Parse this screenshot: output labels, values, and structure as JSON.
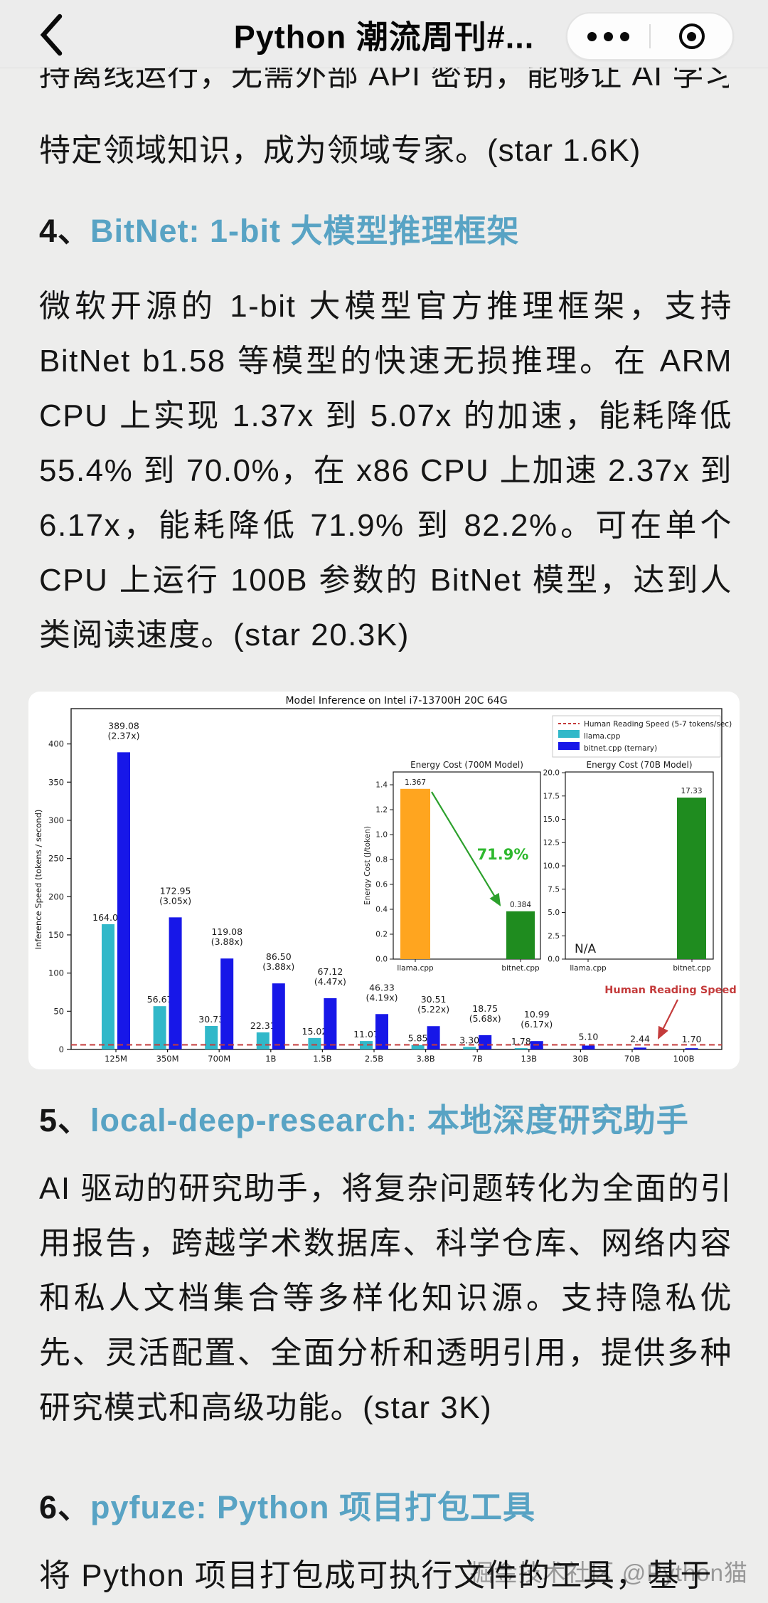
{
  "nav": {
    "title": "Python 潮流周刊#...",
    "back_icon": "chevron-left",
    "menu_icon": "three-dots",
    "capsule_icon": "target-circle"
  },
  "article": {
    "clipped_line": "持离线运行，无需外部 API 密钥，能够让 AI 学习",
    "intro_line": "特定领域知识，成为领域专家。(star 1.6K)",
    "sections": [
      {
        "number": "4、",
        "link_text": "BitNet: 1-bit 大模型推理框架",
        "paragraph": "微软开源的 1-bit 大模型官方推理框架，支持 BitNet b1.58 等模型的快速无损推理。在 ARM CPU 上实现 1.37x 到 5.07x 的加速，能耗降低 55.4% 到 70.0%，在 x86 CPU 上加速 2.37x 到 6.17x，能耗降低 71.9% 到 82.2%。可在单个 CPU 上运行 100B 参数的 BitNet 模型，达到人类阅读速度。(star 20.3K)"
      },
      {
        "number": "5、",
        "link_text": "local-deep-research: 本地深度研究助手",
        "paragraph": "AI 驱动的研究助手，将复杂问题转化为全面的引用报告，跨越学术数据库、科学仓库、网络内容和私人文档集合等多样化知识源。支持隐私优先、灵活配置、全面分析和透明引用，提供多种研究模式和高级功能。(star 3K)"
      },
      {
        "number": "6、",
        "link_text": "pyfuze: Python 项目打包工具",
        "paragraph": "将 Python 项目打包成可执行文件的工具，基于"
      }
    ],
    "watermark": "掘金技术社区 @Python猫"
  },
  "chart_data": [
    {
      "id": "main",
      "type": "bar",
      "title": "Model Inference on Intel i7-13700H 20C 64G",
      "ylabel": "Inference Speed (tokens / second)",
      "categories": [
        "125M",
        "350M",
        "700M",
        "1B",
        "1.5B",
        "2.5B",
        "3.8B",
        "7B",
        "13B",
        "30B",
        "70B",
        "100B"
      ],
      "series": [
        {
          "name": "llama.cpp",
          "color": "#31b8c9",
          "values": [
            164.04,
            56.67,
            30.73,
            22.31,
            15.02,
            11.07,
            5.85,
            3.3,
            1.78,
            null,
            null,
            null
          ]
        },
        {
          "name": "bitnet.cpp (ternary)",
          "color": "#1717e8",
          "values": [
            389.08,
            172.95,
            119.08,
            86.5,
            67.12,
            46.33,
            30.51,
            18.75,
            10.99,
            5.1,
            2.44,
            1.7
          ],
          "speedup_labels": [
            "(2.37x)",
            "(3.05x)",
            "(3.88x)",
            "(3.88x)",
            "(4.47x)",
            "(4.19x)",
            "(5.22x)",
            "(5.68x)",
            "(6.17x)",
            null,
            null,
            null
          ]
        }
      ],
      "yticks": [
        0,
        50,
        100,
        150,
        200,
        250,
        300,
        350,
        400
      ],
      "ylim": [
        0,
        445
      ],
      "grid": false,
      "legend": {
        "position": "upper right",
        "entries": [
          {
            "label": "Human Reading Speed (5-7 tokens/sec)",
            "type": "dashed-line",
            "color": "#c43b3b"
          },
          {
            "label": "llama.cpp",
            "type": "swatch",
            "color": "#31b8c9"
          },
          {
            "label": "bitnet.cpp (ternary)",
            "type": "swatch",
            "color": "#1717e8"
          }
        ]
      },
      "hline": {
        "value": 6,
        "color": "#c43b3b",
        "style": "dashed"
      },
      "annotation": {
        "text": "Human Reading Speed",
        "color": "#c43b3b"
      }
    },
    {
      "id": "inset-700m",
      "type": "bar",
      "title": "Energy Cost (700M Model)",
      "ylabel": "Energy Cost (J/token)",
      "categories": [
        "llama.cpp",
        "bitnet.cpp"
      ],
      "values": [
        1.367,
        0.384
      ],
      "bar_colors": [
        "#ffa51f",
        "#1f8c1f"
      ],
      "value_labels": [
        "1.367",
        "0.384"
      ],
      "yticks": [
        0.0,
        0.2,
        0.4,
        0.6,
        0.8,
        1.0,
        1.2,
        1.4
      ],
      "ylim": [
        0,
        1.5
      ],
      "annotation": {
        "text": "71.9%",
        "color": "#2eb82e"
      }
    },
    {
      "id": "inset-70b",
      "type": "bar",
      "title": "Energy Cost (70B Model)",
      "categories": [
        "llama.cpp",
        "bitnet.cpp"
      ],
      "values": [
        null,
        17.33
      ],
      "bar_colors": [
        null,
        "#1f8c1f"
      ],
      "value_labels": [
        null,
        "17.33"
      ],
      "na_label": "N/A",
      "yticks": [
        0.0,
        2.5,
        5.0,
        7.5,
        10.0,
        12.5,
        15.0,
        17.5,
        20.0
      ],
      "ylim": [
        0,
        20
      ]
    }
  ]
}
